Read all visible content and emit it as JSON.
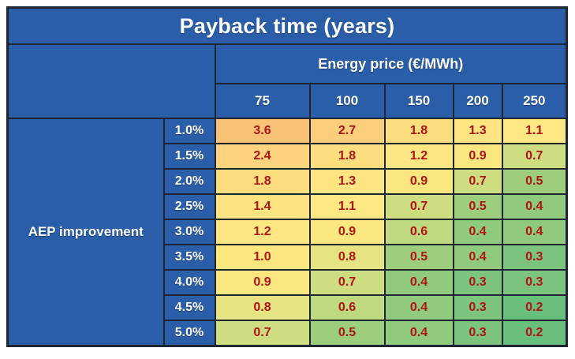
{
  "title": "Payback time (years)",
  "columns_header": "Energy price (€/MWh)",
  "col_labels": [
    "75",
    "100",
    "150",
    "200",
    "250"
  ],
  "row_axis_label": "AEP improvement",
  "rows": [
    {
      "label": "1.0%",
      "values": [
        "3.6",
        "2.7",
        "1.8",
        "1.3",
        "1.1"
      ]
    },
    {
      "label": "1.5%",
      "values": [
        "2.4",
        "1.8",
        "1.2",
        "0.9",
        "0.7"
      ]
    },
    {
      "label": "2.0%",
      "values": [
        "1.8",
        "1.3",
        "0.9",
        "0.7",
        "0.5"
      ]
    },
    {
      "label": "2.5%",
      "values": [
        "1.4",
        "1.1",
        "0.7",
        "0.5",
        "0.4"
      ]
    },
    {
      "label": "3.0%",
      "values": [
        "1.2",
        "0.9",
        "0.6",
        "0.4",
        "0.4"
      ]
    },
    {
      "label": "3.5%",
      "values": [
        "1.0",
        "0.8",
        "0.5",
        "0.4",
        "0.3"
      ]
    },
    {
      "label": "4.0%",
      "values": [
        "0.9",
        "0.7",
        "0.4",
        "0.3",
        "0.3"
      ]
    },
    {
      "label": "4.5%",
      "values": [
        "0.8",
        "0.6",
        "0.4",
        "0.3",
        "0.2"
      ]
    },
    {
      "label": "5.0%",
      "values": [
        "0.7",
        "0.5",
        "0.4",
        "0.3",
        "0.2"
      ]
    }
  ],
  "colors": {
    "header_blue": "#2A5EA9",
    "border": "#1E2430",
    "value_text": "#AE1414",
    "heat_scale": {
      "3.6": "#F9C377",
      "2.7": "#FBCE7B",
      "2.4": "#FCD47D",
      "1.8": "#FDDE7E",
      "1.4": "#FEE381",
      "1.3": "#FEE582",
      "1.2": "#FEE682",
      "1.1": "#FEE883",
      "1.0": "#FDE880",
      "0.9": "#FAE77F",
      "0.8": "#E6E383",
      "0.7": "#CFDD81",
      "0.6": "#BED980",
      "0.5": "#9CCE7E",
      "0.4": "#8FCA7D",
      "0.3": "#7CC47D",
      "0.2": "#67BF7B"
    }
  },
  "chart_data": {
    "type": "heatmap",
    "title": "Payback time (years)",
    "x_label": "Energy price (€/MWh)",
    "y_label": "AEP improvement",
    "x": [
      75,
      100,
      150,
      200,
      250
    ],
    "y": [
      "1.0%",
      "1.5%",
      "2.0%",
      "2.5%",
      "3.0%",
      "3.5%",
      "4.0%",
      "4.5%",
      "5.0%"
    ],
    "values": [
      [
        3.6,
        2.7,
        1.8,
        1.3,
        1.1
      ],
      [
        2.4,
        1.8,
        1.2,
        0.9,
        0.7
      ],
      [
        1.8,
        1.3,
        0.9,
        0.7,
        0.5
      ],
      [
        1.4,
        1.1,
        0.7,
        0.5,
        0.4
      ],
      [
        1.2,
        0.9,
        0.6,
        0.4,
        0.4
      ],
      [
        1.0,
        0.8,
        0.5,
        0.4,
        0.3
      ],
      [
        0.9,
        0.7,
        0.4,
        0.3,
        0.3
      ],
      [
        0.8,
        0.6,
        0.4,
        0.3,
        0.2
      ],
      [
        0.7,
        0.5,
        0.4,
        0.3,
        0.2
      ]
    ],
    "units": "years",
    "color_scale": {
      "low_green": "#63BE7B",
      "mid_yellow": "#FFEB84",
      "high_orange": "#F9C377"
    },
    "legend": "none",
    "grid": "cell-borders"
  }
}
